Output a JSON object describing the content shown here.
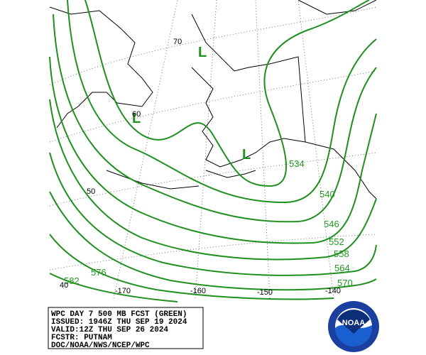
{
  "info_box": {
    "lines": [
      "WPC DAY 7 500 MB FCST (GREEN)",
      "ISSUED: 1946Z THU SEP 19 2024",
      "VALID:12Z THU SEP 26 2024",
      "FCSTR: PUTNAM",
      "DOC/NOAA/NWS/NCEP/WPC"
    ]
  },
  "contour_labels": [
    "534",
    "540",
    "546",
    "552",
    "558",
    "564",
    "570",
    "576",
    "582"
  ],
  "latitude_labels": [
    "70",
    "60",
    "50",
    "40"
  ],
  "longitude_labels": [
    "-170",
    "-160",
    "-150",
    "-140"
  ],
  "lows": [
    "L",
    "L",
    "L"
  ],
  "logo": {
    "text": "NOAA"
  }
}
